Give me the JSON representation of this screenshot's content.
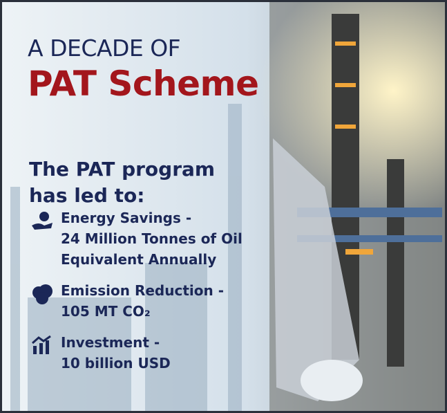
{
  "header": {
    "kicker": "A DECADE OF",
    "title": "PAT Scheme"
  },
  "intro": "The PAT program has led to:",
  "items": [
    {
      "label": "Energy Savings -",
      "detail": "24 Million Tonnes of Oil Equivalent Annually"
    },
    {
      "label": "Emission Reduction -",
      "detail": "105 MT CO₂"
    },
    {
      "label": "Investment -",
      "detail": "10 billion USD"
    }
  ]
}
